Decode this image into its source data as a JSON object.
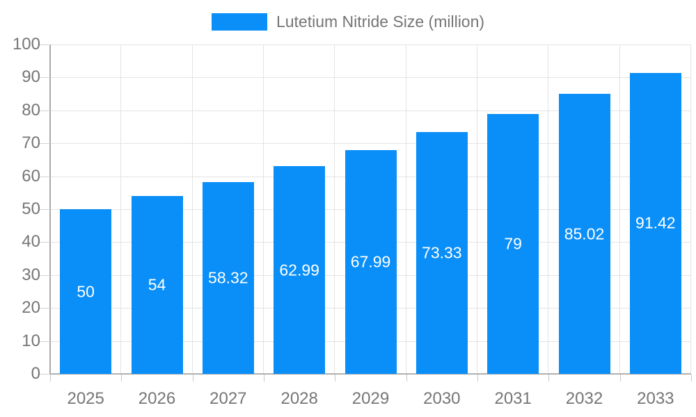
{
  "legend": {
    "label": "Lutetium Nitride Size (million)"
  },
  "chart_data": {
    "type": "bar",
    "title": "Lutetium Nitride Size (million)",
    "series_name": "Lutetium Nitride Size (million)",
    "categories": [
      "2025",
      "2026",
      "2027",
      "2028",
      "2029",
      "2030",
      "2031",
      "2032",
      "2033"
    ],
    "values": [
      50,
      54,
      58.32,
      62.99,
      67.99,
      73.33,
      79,
      85.02,
      91.42
    ],
    "value_labels": [
      "50",
      "54",
      "58.32",
      "62.99",
      "67.99",
      "73.33",
      "79",
      "85.02",
      "91.42"
    ],
    "xlabel": "",
    "ylabel": "",
    "ylim": [
      0,
      100
    ],
    "y_ticks": [
      0,
      10,
      20,
      30,
      40,
      50,
      60,
      70,
      80,
      90,
      100
    ],
    "grid": true,
    "legend_position": "top-center",
    "colors": {
      "bar": "#0a8ff9",
      "bar_label": "#ffffff",
      "axis_text": "#757575",
      "axis_line": "#a9a9a9",
      "gridline": "#e3e3e3",
      "background": "#ffffff"
    }
  }
}
